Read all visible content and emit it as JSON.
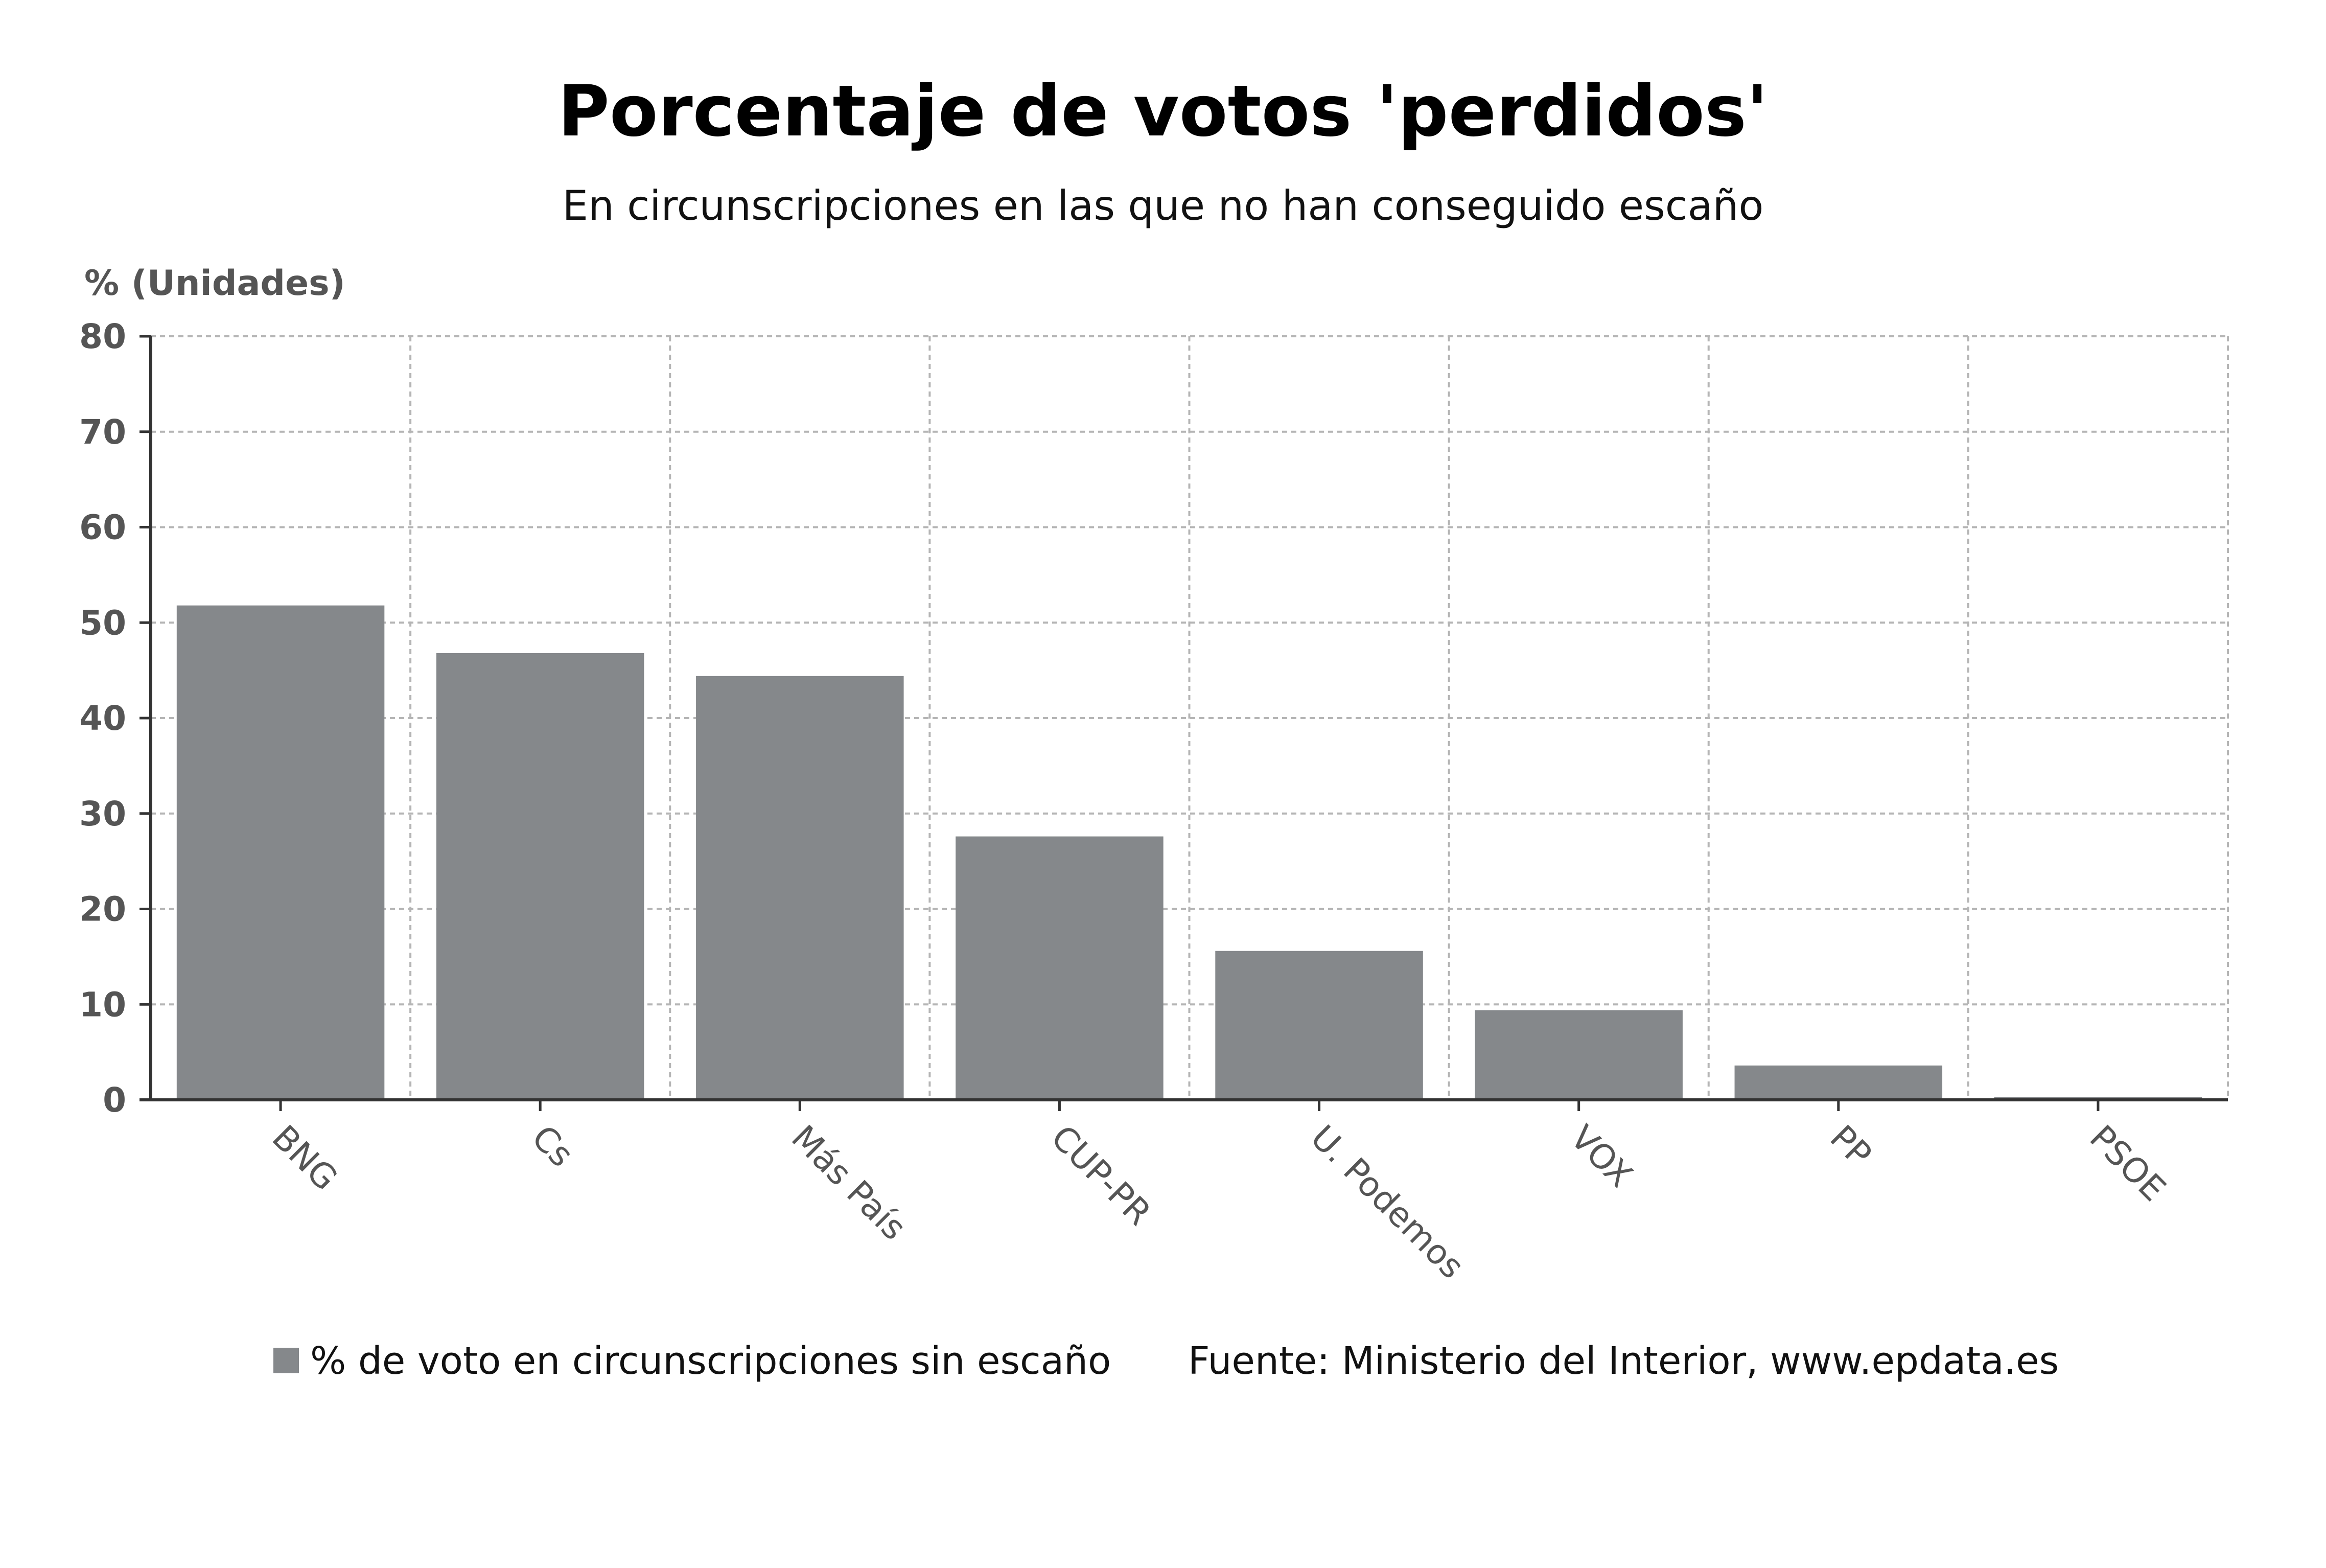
{
  "chart_data": {
    "type": "bar",
    "title": "Porcentaje de votos 'perdidos'",
    "subtitle": "En circunscripciones en las que no han conseguido escaño",
    "ylabel": "% (Unidades)",
    "categories": [
      "BNG",
      "Cs",
      "Más País",
      "CUP-PR",
      "U. Podemos",
      "VOX",
      "PP",
      "PSOE"
    ],
    "series": [
      {
        "name": "% de voto en circunscripciones sin escaño",
        "values": [
          51.8,
          46.8,
          44.4,
          27.6,
          15.6,
          9.4,
          3.6,
          0.3
        ]
      }
    ],
    "ylim": [
      0,
      80
    ],
    "yticks": [
      "0",
      "10",
      "20",
      "30",
      "40",
      "50",
      "60",
      "70",
      "80"
    ],
    "grid": true,
    "legend_position": "bottom",
    "bar_color": "#85888b",
    "source": "Fuente: Ministerio del Interior, www.epdata.es"
  }
}
